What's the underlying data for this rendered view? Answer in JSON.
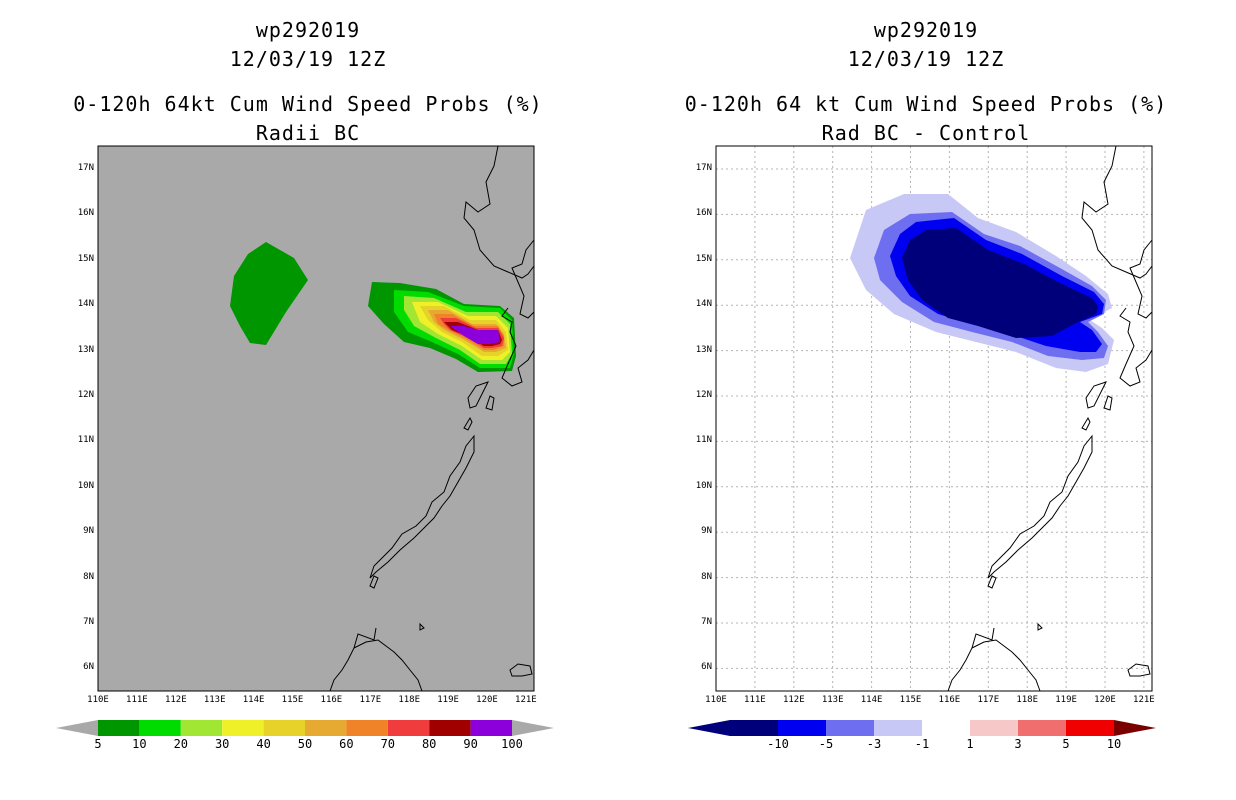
{
  "left": {
    "title": [
      "wp292019",
      "12/03/19 12Z",
      "0-120h 64kt Cum Wind Speed Probs (%)",
      "Radii BC"
    ],
    "background": "#a9a9a9",
    "colorbar": {
      "colors": [
        "#009600",
        "#00dc00",
        "#a0e632",
        "#f0f028",
        "#e6d228",
        "#e6aa32",
        "#f08228",
        "#f03c3c",
        "#a00000",
        "#8c00dc"
      ],
      "end_color": "#a9a9a9",
      "labels": [
        "5",
        "10",
        "20",
        "30",
        "40",
        "50",
        "60",
        "70",
        "80",
        "90",
        "100"
      ]
    }
  },
  "right": {
    "title": [
      "wp292019",
      "12/03/19 12Z",
      "0-120h 64 kt Cum Wind Speed Probs (%)",
      "Rad BC - Control"
    ],
    "background": "#ffffff",
    "colorbar": {
      "colors": [
        "#00007a",
        "#0000f0",
        "#6e6ef0",
        "#c8c8f6",
        "#ffffff",
        "#f6c8c8",
        "#f06e6e",
        "#f00000"
      ],
      "low_end_color": "#00007a",
      "high_end_color": "#7a0000",
      "labels": [
        "-10",
        "-5",
        "-3",
        "-1",
        "1",
        "3",
        "5",
        "10"
      ]
    }
  },
  "axes": {
    "lat_labels": [
      "17N",
      "16N",
      "15N",
      "14N",
      "13N",
      "12N",
      "11N",
      "10N",
      "9N",
      "8N",
      "7N",
      "6N"
    ],
    "lon_labels": [
      "110E",
      "111E",
      "112E",
      "113E",
      "114E",
      "115E",
      "116E",
      "117E",
      "118E",
      "119E",
      "120E",
      "121E"
    ]
  }
}
